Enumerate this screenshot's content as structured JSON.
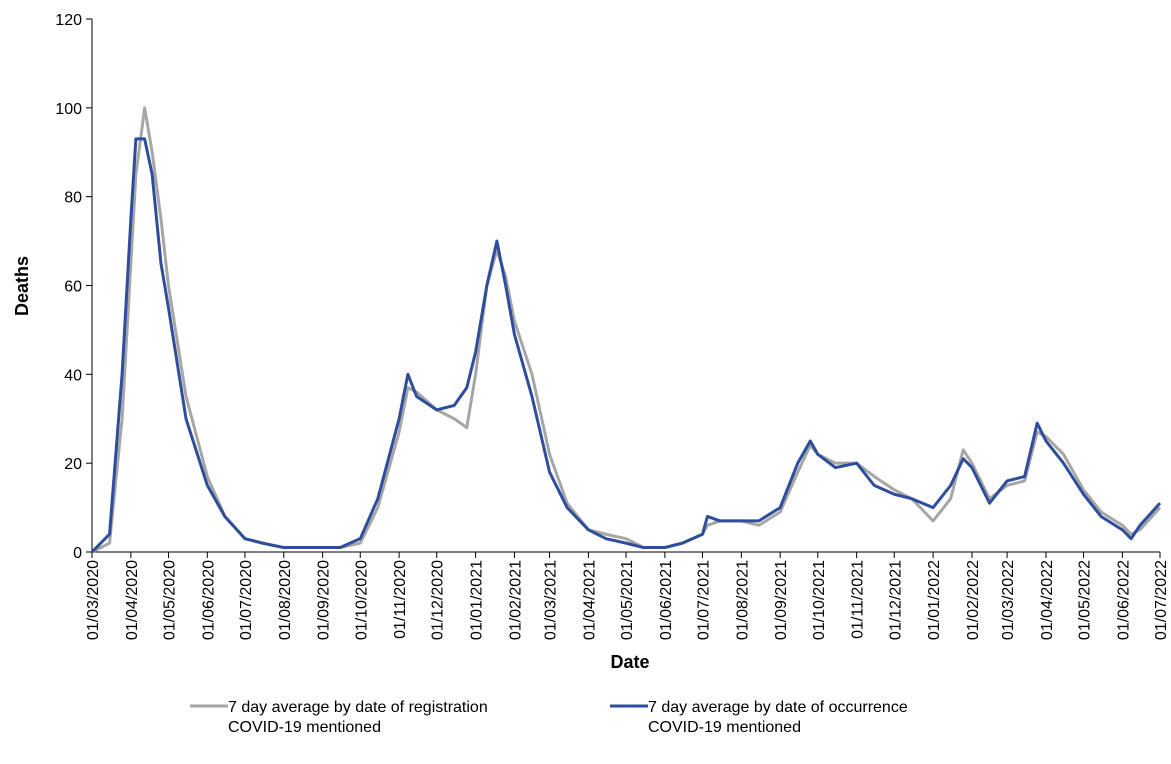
{
  "chart_data": {
    "type": "line",
    "x_label": "Date",
    "y_label": "Deaths",
    "x": [
      "01/03/2020",
      "15/03/2020",
      "25/03/2020",
      "01/04/2020",
      "05/04/2020",
      "12/04/2020",
      "18/04/2020",
      "25/04/2020",
      "01/05/2020",
      "15/05/2020",
      "01/06/2020",
      "15/06/2020",
      "01/07/2020",
      "15/07/2020",
      "01/08/2020",
      "15/08/2020",
      "01/09/2020",
      "15/09/2020",
      "01/10/2020",
      "15/10/2020",
      "01/11/2020",
      "08/11/2020",
      "15/11/2020",
      "01/12/2020",
      "15/12/2020",
      "25/12/2020",
      "01/01/2021",
      "10/01/2021",
      "18/01/2021",
      "25/01/2021",
      "01/02/2021",
      "15/02/2021",
      "01/03/2021",
      "15/03/2021",
      "01/04/2021",
      "15/04/2021",
      "01/05/2021",
      "15/05/2021",
      "01/06/2021",
      "15/06/2021",
      "01/07/2021",
      "05/07/2021",
      "15/07/2021",
      "01/08/2021",
      "15/08/2021",
      "01/09/2021",
      "15/09/2021",
      "25/09/2021",
      "01/10/2021",
      "15/10/2021",
      "01/11/2021",
      "15/11/2021",
      "01/12/2021",
      "15/12/2021",
      "01/01/2022",
      "15/01/2022",
      "25/01/2022",
      "01/02/2022",
      "15/02/2022",
      "01/03/2022",
      "15/03/2022",
      "25/03/2022",
      "01/04/2022",
      "15/04/2022",
      "01/05/2022",
      "15/05/2022",
      "01/06/2022",
      "08/06/2022",
      "15/06/2022",
      "01/07/2022"
    ],
    "series": [
      {
        "name": "7 day average by date of registration\nCOVID-19 mentioned",
        "color": "#a6a6a6",
        "values": [
          0,
          2,
          30,
          65,
          85,
          100,
          90,
          75,
          60,
          35,
          17,
          8,
          3,
          2,
          1,
          1,
          1,
          1,
          2,
          10,
          27,
          37,
          36,
          32,
          30,
          28,
          40,
          60,
          68,
          62,
          52,
          40,
          22,
          11,
          5,
          4,
          3,
          1,
          1,
          2,
          4,
          6,
          7,
          7,
          6,
          9,
          18,
          24,
          22,
          20,
          20,
          17,
          14,
          12,
          7,
          12,
          23,
          20,
          12,
          15,
          16,
          27,
          26,
          22,
          14,
          9,
          6,
          4,
          5,
          10
        ]
      },
      {
        "name": "7 day average by date of occurrence\nCOVID-19 mentioned",
        "color": "#2e4d9c",
        "values": [
          0,
          4,
          40,
          75,
          93,
          93,
          85,
          65,
          55,
          30,
          15,
          8,
          3,
          2,
          1,
          1,
          1,
          1,
          3,
          12,
          30,
          40,
          35,
          32,
          33,
          37,
          45,
          60,
          70,
          60,
          49,
          35,
          18,
          10,
          5,
          3,
          2,
          1,
          1,
          2,
          4,
          8,
          7,
          7,
          7,
          10,
          20,
          25,
          22,
          19,
          20,
          15,
          13,
          12,
          10,
          15,
          21,
          19,
          11,
          16,
          17,
          29,
          25,
          20,
          13,
          8,
          5,
          3,
          6,
          11
        ]
      }
    ],
    "xlim": [
      "01/03/2020",
      "01/07/2022"
    ],
    "xticks": [
      "01/03/2020",
      "01/04/2020",
      "01/05/2020",
      "01/06/2020",
      "01/07/2020",
      "01/08/2020",
      "01/09/2020",
      "01/10/2020",
      "01/11/2020",
      "01/12/2020",
      "01/01/2021",
      "01/02/2021",
      "01/03/2021",
      "01/04/2021",
      "01/05/2021",
      "01/06/2021",
      "01/07/2021",
      "01/08/2021",
      "01/09/2021",
      "01/10/2021",
      "01/11/2021",
      "01/12/2021",
      "01/01/2022",
      "01/02/2022",
      "01/03/2022",
      "01/04/2022",
      "01/05/2022",
      "01/06/2022",
      "01/07/2022"
    ],
    "ylim": [
      0,
      120
    ],
    "yticks": [
      0,
      20,
      40,
      60,
      80,
      100,
      120
    ],
    "grid": false
  }
}
